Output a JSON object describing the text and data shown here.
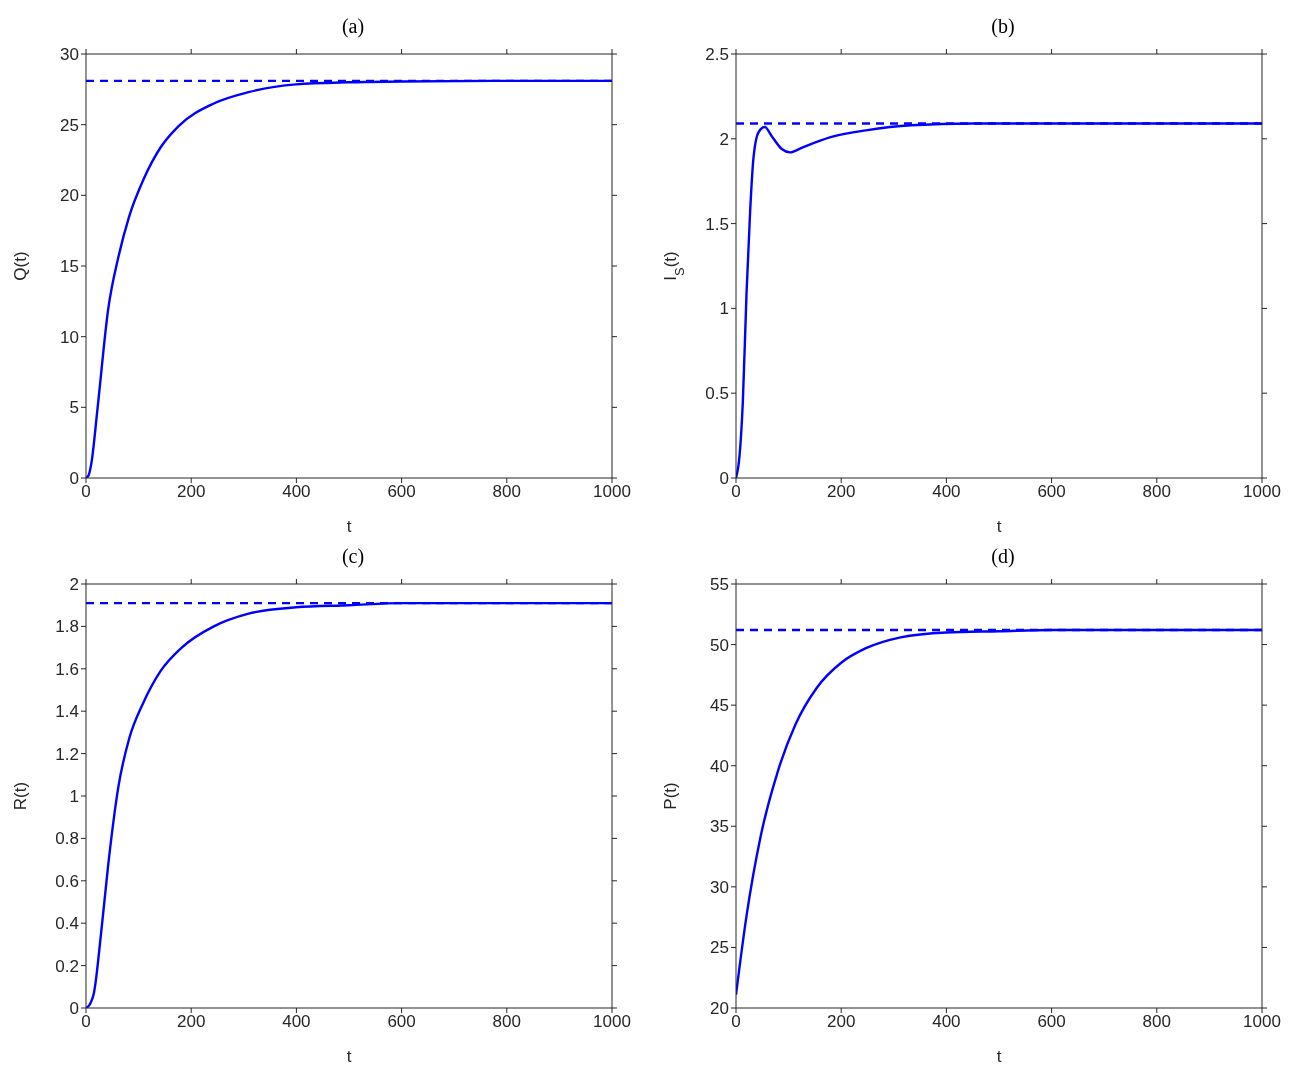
{
  "chart_data": [
    {
      "type": "line",
      "title": "(a)",
      "xlabel": "t",
      "ylabel": "Q(t)",
      "x": [
        0,
        5,
        10,
        22,
        42,
        62,
        82,
        109,
        142,
        176,
        243,
        309,
        399,
        500,
        600,
        800,
        1000
      ],
      "xlim": [
        0,
        1000
      ],
      "xticks": [
        0,
        200,
        400,
        600,
        800,
        1000
      ],
      "ylim": [
        0,
        30
      ],
      "yticks": [
        0,
        5,
        10,
        15,
        20,
        25,
        30
      ],
      "series": [
        {
          "color": "#0000ff",
          "values": [
            0,
            0.2,
            1.0,
            4.95,
            11.9,
            15.7,
            18.5,
            21.1,
            23.4,
            24.9,
            26.5,
            27.3,
            27.85,
            28.0,
            28.05,
            28.1,
            28.1
          ]
        }
      ],
      "ref_lines": [
        {
          "axis": "y",
          "value": 28.1,
          "color": "#0000ff",
          "line_style": "dashed"
        }
      ],
      "grid": false,
      "legend": false,
      "line_style": "solid",
      "marker": "none"
    },
    {
      "type": "line",
      "title": "(b)",
      "xlabel": "t",
      "ylabel": "I$_{S}$(t)",
      "x": [
        0,
        6.7,
        13,
        20,
        27,
        33,
        43,
        55,
        67,
        87,
        103,
        127,
        180,
        247,
        333,
        450,
        600,
        800,
        1000
      ],
      "xlim": [
        0,
        1000
      ],
      "xticks": [
        0,
        200,
        400,
        600,
        800,
        1000
      ],
      "ylim": [
        0,
        2.5
      ],
      "yticks": [
        0,
        0.5,
        1,
        1.5,
        2,
        2.5
      ],
      "series": [
        {
          "color": "#0000ff",
          "values": [
            0,
            0.13,
            0.45,
            1.09,
            1.58,
            1.88,
            2.04,
            2.07,
            2.02,
            1.94,
            1.92,
            1.95,
            2.01,
            2.05,
            2.08,
            2.09,
            2.09,
            2.09,
            2.09
          ]
        }
      ],
      "ref_lines": [
        {
          "axis": "y",
          "value": 2.09,
          "color": "#0000ff",
          "line_style": "dashed"
        }
      ],
      "grid": false,
      "legend": false,
      "line_style": "solid",
      "marker": "none"
    },
    {
      "type": "line",
      "title": "(c)",
      "xlabel": "t",
      "ylabel": "R(t)",
      "x": [
        0,
        8,
        15,
        29,
        42,
        62,
        82,
        109,
        142,
        182,
        243,
        309,
        399,
        500,
        600,
        800,
        1000
      ],
      "xlim": [
        0,
        1000
      ],
      "xticks": [
        0,
        200,
        400,
        600,
        800,
        1000
      ],
      "ylim": [
        0,
        2
      ],
      "yticks": [
        0,
        0.2,
        0.4,
        0.6,
        0.8,
        1,
        1.2,
        1.4,
        1.6,
        1.8,
        2
      ],
      "series": [
        {
          "color": "#0000ff",
          "values": [
            0,
            0.02,
            0.07,
            0.36,
            0.67,
            1.05,
            1.27,
            1.44,
            1.59,
            1.7,
            1.8,
            1.86,
            1.89,
            1.9,
            1.91,
            1.91,
            1.91
          ]
        }
      ],
      "ref_lines": [
        {
          "axis": "y",
          "value": 1.91,
          "color": "#0000ff",
          "line_style": "dashed"
        }
      ],
      "grid": false,
      "legend": false,
      "line_style": "solid",
      "marker": "none"
    },
    {
      "type": "line",
      "title": "(d)",
      "xlabel": "t",
      "ylabel": "P(t)",
      "x": [
        0,
        20,
        47,
        80,
        113,
        153,
        200,
        247,
        313,
        400,
        500,
        600,
        800,
        1000
      ],
      "xlim": [
        0,
        1000
      ],
      "xticks": [
        0,
        200,
        400,
        600,
        800,
        1000
      ],
      "ylim": [
        20,
        55
      ],
      "yticks": [
        20,
        25,
        30,
        35,
        40,
        45,
        50,
        55
      ],
      "series": [
        {
          "color": "#0000ff",
          "values": [
            21.1,
            27.6,
            34.2,
            39.6,
            43.4,
            46.4,
            48.5,
            49.7,
            50.6,
            51.0,
            51.1,
            51.2,
            51.2,
            51.2
          ]
        }
      ],
      "ref_lines": [
        {
          "axis": "y",
          "value": 51.2,
          "color": "#0000ff",
          "line_style": "dashed"
        }
      ],
      "grid": false,
      "legend": false,
      "line_style": "solid",
      "marker": "none"
    }
  ]
}
